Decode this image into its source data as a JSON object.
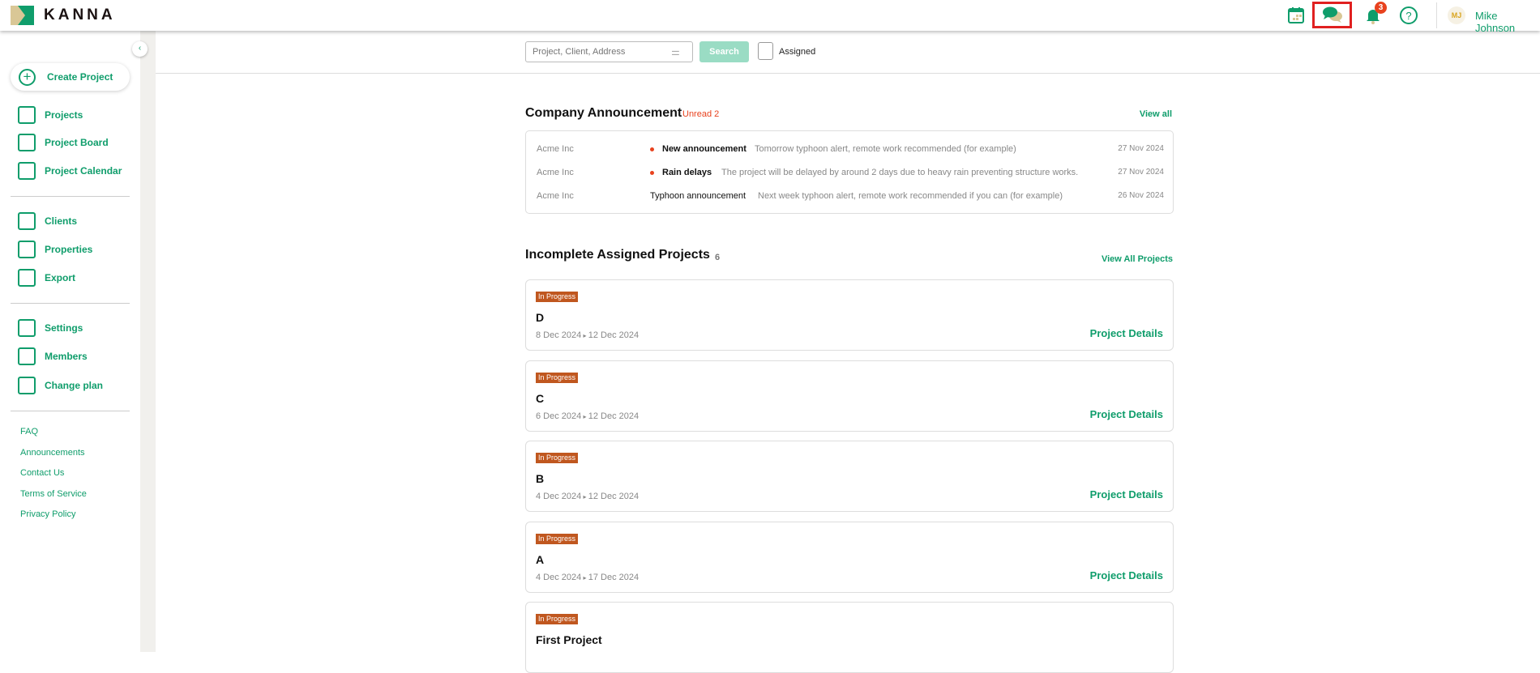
{
  "header": {
    "logo_text": "KANNA",
    "notification_count": "3",
    "avatar_initials": "MJ",
    "user_name": "Mike Johnson",
    "highlight_color": "#e02020"
  },
  "sidebar": {
    "create_label": "Create Project",
    "items": [
      {
        "label": "Projects",
        "icon": "list-icon"
      },
      {
        "label": "Project Board",
        "icon": "board-icon"
      },
      {
        "label": "Project Calendar",
        "icon": "calendar-icon"
      },
      {
        "label": "Clients",
        "icon": "client-icon"
      },
      {
        "label": "Properties",
        "icon": "property-icon"
      },
      {
        "label": "Export",
        "icon": "export-icon"
      },
      {
        "label": "Settings",
        "icon": "gear-icon"
      },
      {
        "label": "Members",
        "icon": "person-icon"
      },
      {
        "label": "Change plan",
        "icon": "clipboard-check-icon"
      }
    ],
    "links": [
      "FAQ",
      "Announcements",
      "Contact Us",
      "Terms of Service",
      "Privacy Policy"
    ]
  },
  "search": {
    "placeholder": "Project, Client, Address",
    "button": "Search",
    "assigned_label": "Assigned"
  },
  "announcements": {
    "title": "Company Announcement",
    "unread": "Unread 2",
    "view_all": "View all",
    "rows": [
      {
        "company": "Acme Inc",
        "unread": true,
        "title": "New announcement",
        "body": "Tomorrow typhoon alert, remote work recommended (for example)",
        "date": "27 Nov 2024"
      },
      {
        "company": "Acme Inc",
        "unread": true,
        "title": "Rain delays",
        "body": "The project will be delayed by around 2 days due to heavy rain preventing structure works.",
        "date": "27 Nov 2024"
      },
      {
        "company": "Acme Inc",
        "unread": false,
        "title": "Typhoon announcement",
        "body": "Next week typhoon alert, remote work recommended if you can (for example)",
        "date": "26 Nov 2024"
      }
    ]
  },
  "projects": {
    "title": "Incomplete Assigned Projects",
    "count": "6",
    "view_all": "View All Projects",
    "details_label": "Project Details",
    "items": [
      {
        "status": "In Progress",
        "name": "D",
        "start": "8 Dec 2024",
        "end": "12 Dec 2024"
      },
      {
        "status": "In Progress",
        "name": "C",
        "start": "6 Dec 2024",
        "end": "12 Dec 2024"
      },
      {
        "status": "In Progress",
        "name": "B",
        "start": "4 Dec 2024",
        "end": "12 Dec 2024"
      },
      {
        "status": "In Progress",
        "name": "A",
        "start": "4 Dec 2024",
        "end": "17 Dec 2024"
      },
      {
        "status": "In Progress",
        "name": "First Project",
        "start": "",
        "end": ""
      }
    ]
  },
  "colors": {
    "brand": "#0f9d6b",
    "badge": "#c0571f",
    "unread": "#e8421e"
  }
}
